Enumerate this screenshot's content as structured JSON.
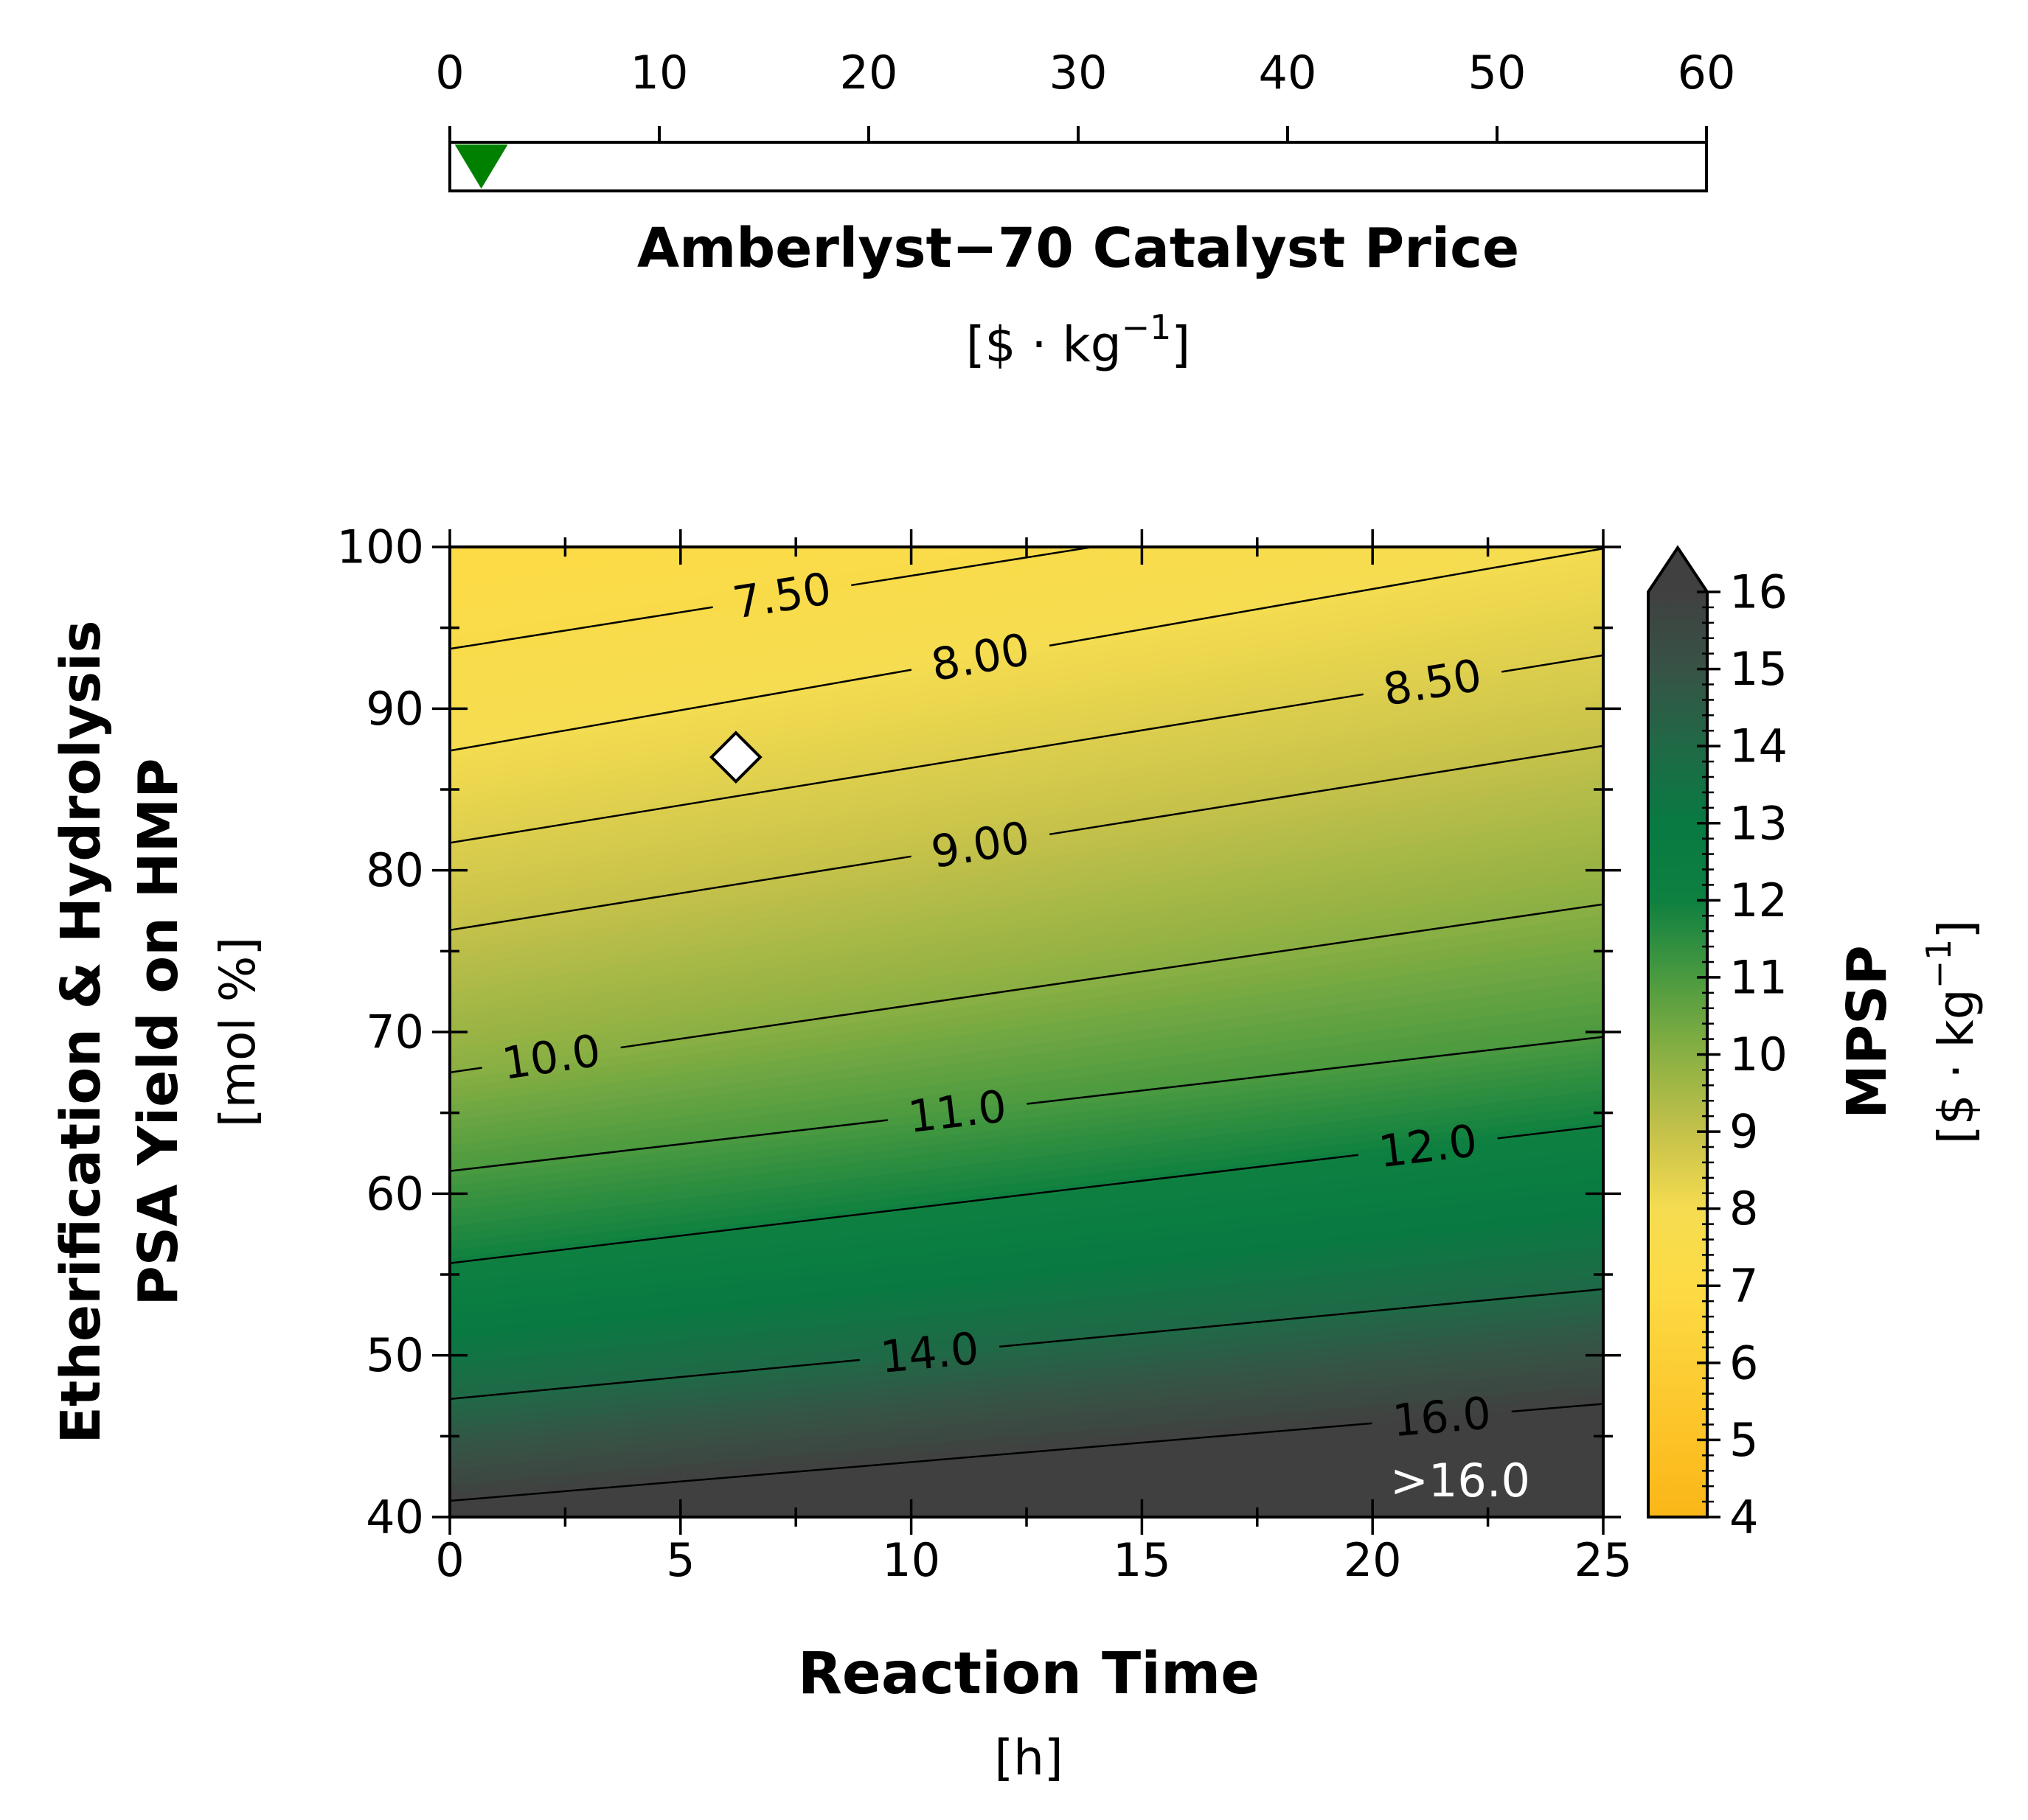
{
  "chart_data": [
    {
      "type": "indicator",
      "xlabel": "Amberlyst−70 Catalyst Price",
      "xunit_base": "[$ · kg",
      "xunit_exp": "−1",
      "xunit_close": "]",
      "xlim": [
        0,
        60
      ],
      "xticks": [
        0,
        10,
        20,
        30,
        40,
        50,
        60
      ],
      "tick_labels": [
        "0",
        "10",
        "20",
        "30",
        "40",
        "50",
        "60"
      ],
      "marker": {
        "value": 1.5,
        "shape": "down-triangle",
        "color": "#008000"
      }
    },
    {
      "type": "contour",
      "xlabel": "Reaction Time",
      "xunit": "[h]",
      "ylabel_line1": "Etherification & Hydrolysis",
      "ylabel_line2": "PSA Yield on HMP",
      "yunit": "[mol %]",
      "xlim": [
        0,
        25
      ],
      "ylim": [
        40,
        100
      ],
      "xticks": [
        0,
        5,
        10,
        15,
        20,
        25
      ],
      "x_tick_labels": [
        "0",
        "5",
        "10",
        "15",
        "20",
        "25"
      ],
      "yticks": [
        40,
        50,
        60,
        70,
        80,
        90,
        100
      ],
      "y_tick_labels": [
        "40",
        "50",
        "60",
        "70",
        "80",
        "90",
        "100"
      ],
      "contours": [
        {
          "level": 7.5,
          "label": "7.50",
          "y_at_x0": 93.7,
          "y_at_x25": 105.0,
          "label_x": 7.2,
          "label_y": 96.8
        },
        {
          "level": 8.0,
          "label": "8.00",
          "y_at_x0": 87.4,
          "y_at_x25": 99.9,
          "label_x": 11.5,
          "label_y": 92.2
        },
        {
          "level": 8.5,
          "label": "8.50",
          "y_at_x0": 81.7,
          "y_at_x25": 93.3,
          "label_x": 21.3,
          "label_y": 90.5
        },
        {
          "level": 9.0,
          "label": "9.00",
          "y_at_x0": 76.3,
          "y_at_x25": 87.7,
          "label_x": 11.5,
          "label_y": 81.2
        },
        {
          "level": 10.0,
          "label": "10.0",
          "y_at_x0": 67.5,
          "y_at_x25": 77.9,
          "label_x": 2.2,
          "label_y": 68.6
        },
        {
          "level": 11.0,
          "label": "11.0",
          "y_at_x0": 61.4,
          "y_at_x25": 69.7,
          "label_x": 11.0,
          "label_y": 65.2
        },
        {
          "level": 12.0,
          "label": "12.0",
          "y_at_x0": 55.7,
          "y_at_x25": 64.2,
          "label_x": 21.2,
          "label_y": 62.0
        },
        {
          "level": 14.0,
          "label": "14.0",
          "y_at_x0": 47.3,
          "y_at_x25": 54.1,
          "label_x": 10.4,
          "label_y": 50.2
        },
        {
          "level": 16.0,
          "label": "16.0",
          "y_at_x0": 41.0,
          "y_at_x25": 47.0,
          "label_x": 21.5,
          "label_y": 45.6
        }
      ],
      "annotation": ">16.0",
      "baseline_point": {
        "x": 6.2,
        "y": 87.0,
        "shape": "diamond"
      },
      "colorbar": {
        "label": "MPSP",
        "unit_base": "[$ · kg",
        "unit_exp": "−1",
        "unit_close": "]",
        "range": [
          4,
          16
        ],
        "extend": "max",
        "ticks": [
          4,
          5,
          6,
          7,
          8,
          9,
          10,
          11,
          12,
          13,
          14,
          15,
          16
        ],
        "tick_labels": [
          "4",
          "5",
          "6",
          "7",
          "8",
          "9",
          "10",
          "11",
          "12",
          "13",
          "14",
          "15",
          "16"
        ],
        "colormap": [
          [
            4,
            "#fbb617"
          ],
          [
            7,
            "#fddb45"
          ],
          [
            8,
            "#f5dc50"
          ],
          [
            9,
            "#c4c14a"
          ],
          [
            10,
            "#8ab043"
          ],
          [
            11,
            "#4a9a40"
          ],
          [
            12,
            "#0e8040"
          ],
          [
            13,
            "#087a42"
          ],
          [
            14,
            "#206946"
          ],
          [
            15,
            "#375346"
          ],
          [
            16,
            "#404040"
          ]
        ],
        "over_color": "#404040"
      }
    }
  ]
}
